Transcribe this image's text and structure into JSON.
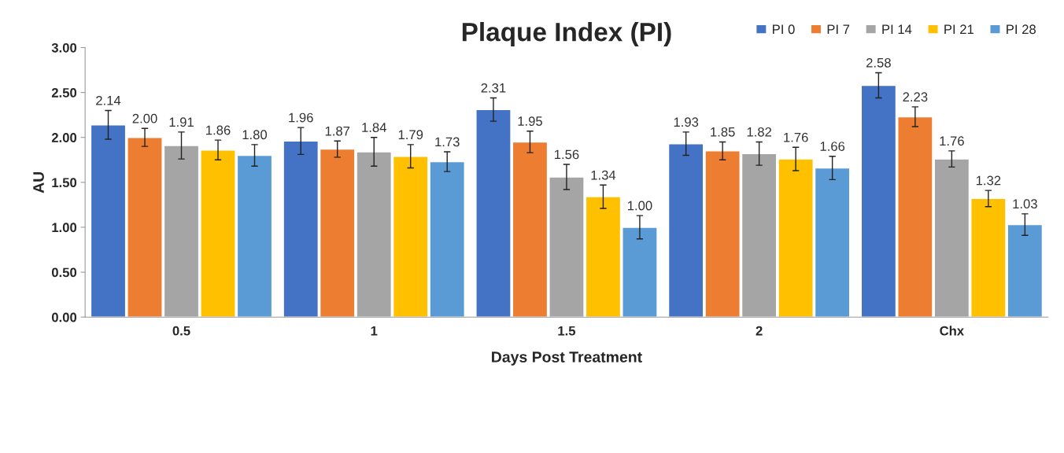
{
  "chart_data": {
    "type": "bar",
    "title": "Plaque Index (PI)",
    "xlabel": "Days Post Treatment",
    "ylabel": "AU",
    "categories": [
      "0.5",
      "1",
      "1.5",
      "2",
      "Chx"
    ],
    "series": [
      {
        "name": "PI 0",
        "color": "#4472c4",
        "values": [
          2.14,
          1.96,
          2.31,
          1.93,
          2.58
        ],
        "errors": [
          0.16,
          0.15,
          0.13,
          0.13,
          0.14
        ],
        "value_labels": [
          "2.14",
          "1.96",
          "2.31",
          "1.93",
          "2.58"
        ]
      },
      {
        "name": "PI 7",
        "color": "#ed7d31",
        "values": [
          2.0,
          1.87,
          1.95,
          1.85,
          2.23
        ],
        "errors": [
          0.1,
          0.09,
          0.12,
          0.1,
          0.11
        ],
        "value_labels": [
          "2.00",
          "1.87",
          "1.95",
          "1.85",
          "2.23"
        ]
      },
      {
        "name": "PI 14",
        "color": "#a5a5a5",
        "values": [
          1.91,
          1.84,
          1.56,
          1.82,
          1.76
        ],
        "errors": [
          0.15,
          0.16,
          0.14,
          0.13,
          0.09
        ],
        "value_labels": [
          "1.91",
          "1.84",
          "1.56",
          "1.82",
          "1.76"
        ]
      },
      {
        "name": "PI 21",
        "color": "#ffc000",
        "values": [
          1.86,
          1.79,
          1.34,
          1.76,
          1.32
        ],
        "errors": [
          0.11,
          0.13,
          0.13,
          0.13,
          0.09
        ],
        "value_labels": [
          "1.86",
          "1.79",
          "1.34",
          "1.76",
          "1.32"
        ]
      },
      {
        "name": "PI 28",
        "color": "#5b9bd5",
        "values": [
          1.8,
          1.73,
          1.0,
          1.66,
          1.03
        ],
        "errors": [
          0.12,
          0.11,
          0.13,
          0.13,
          0.12
        ],
        "value_labels": [
          "1.80",
          "1.73",
          "1.00",
          "1.66",
          "1.03"
        ]
      }
    ],
    "ylim": [
      0,
      3
    ],
    "yticks": [
      {
        "value": 0,
        "label": "0.00"
      },
      {
        "value": 0.5,
        "label": "0.50"
      },
      {
        "value": 1,
        "label": "1.00"
      },
      {
        "value": 1.5,
        "label": "1.50"
      },
      {
        "value": 2,
        "label": "2.00"
      },
      {
        "value": 2.5,
        "label": "2.50"
      },
      {
        "value": 3,
        "label": "3.00"
      }
    ],
    "grid": false,
    "legend": "top right"
  }
}
